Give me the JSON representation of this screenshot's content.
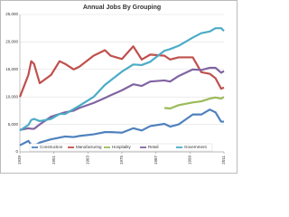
{
  "chart_data": {
    "type": "line",
    "title": "Annual Jobs By Grouping",
    "x": [
      1939,
      1942,
      1943,
      1944,
      1946,
      1950,
      1953,
      1955,
      1958,
      1960,
      1965,
      1969,
      1971,
      1975,
      1979,
      1982,
      1985,
      1990,
      1992,
      1995,
      2000,
      2003,
      2006,
      2008,
      2010,
      2011
    ],
    "xlim": [
      1939,
      2011
    ],
    "xticks": [
      1939,
      1951,
      1963,
      1975,
      1987,
      1999,
      2011
    ],
    "ylim": [
      0,
      25000
    ],
    "yticks": [
      0,
      {
        "value": 5000,
        "label": "5,000"
      },
      {
        "value": 10000,
        "label": "10,000"
      },
      {
        "value": 15000,
        "label": "15,000"
      },
      {
        "value": 20000,
        "label": "20,000"
      },
      {
        "value": 25000,
        "label": "25,000"
      }
    ],
    "grid": true,
    "legend": "bottom",
    "series": [
      {
        "name": "Construction",
        "color": "#4f81bd",
        "values": [
          1200,
          2000,
          1300,
          1100,
          1700,
          2300,
          2600,
          2800,
          2700,
          2900,
          3200,
          3600,
          3600,
          3500,
          4300,
          3900,
          4700,
          5100,
          4600,
          5000,
          6800,
          6800,
          7700,
          7200,
          5500,
          5500
        ]
      },
      {
        "name": "Manufacturing",
        "color": "#c0504d",
        "values": [
          10000,
          14000,
          16500,
          16000,
          12500,
          14000,
          16500,
          16000,
          15000,
          15500,
          17500,
          18500,
          17500,
          16900,
          19200,
          16800,
          17700,
          17500,
          16800,
          17200,
          17200,
          14500,
          14200,
          13400,
          11500,
          11700
        ]
      },
      {
        "name": "Hospitality",
        "color": "#9bbb59",
        "values": [
          null,
          null,
          null,
          null,
          null,
          null,
          null,
          null,
          null,
          null,
          null,
          null,
          null,
          null,
          null,
          null,
          null,
          8000,
          7900,
          8500,
          9000,
          9200,
          9700,
          9900,
          9700,
          10000
        ]
      },
      {
        "name": "Retail",
        "color": "#8064a2",
        "values": [
          4000,
          4300,
          4200,
          4200,
          5000,
          6400,
          6900,
          7200,
          7500,
          8000,
          8900,
          9800,
          10300,
          11200,
          12300,
          12000,
          12800,
          13000,
          12800,
          13800,
          15000,
          14900,
          15300,
          15300,
          14400,
          14700
        ]
      },
      {
        "name": "Government",
        "color": "#4bacc6",
        "values": [
          3900,
          4900,
          5800,
          6000,
          5600,
          6000,
          6900,
          6900,
          7800,
          8400,
          10000,
          12200,
          13000,
          14600,
          15900,
          15800,
          16400,
          18400,
          18700,
          19300,
          20800,
          21600,
          21900,
          22500,
          22500,
          22000
        ]
      }
    ]
  }
}
